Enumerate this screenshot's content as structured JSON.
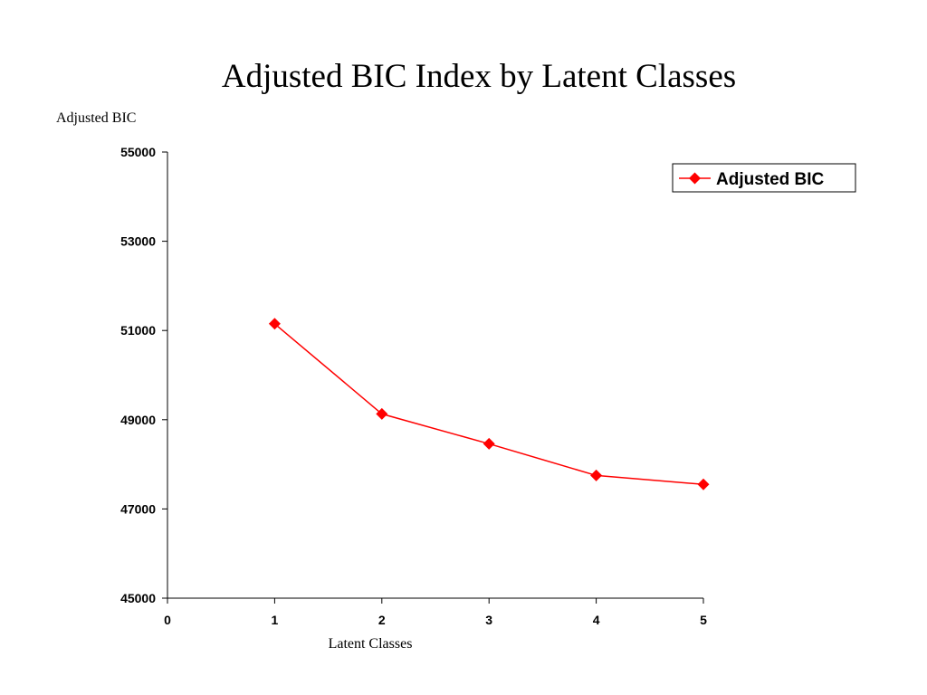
{
  "chart_data": {
    "type": "line",
    "title": "Adjusted BIC Index by Latent Classes",
    "xlabel": "Latent Classes",
    "ylabel": "Adjusted BIC",
    "xlim": [
      0,
      5
    ],
    "ylim": [
      45000,
      55000
    ],
    "xticks": [
      "0",
      "1",
      "2",
      "3",
      "4",
      "5"
    ],
    "yticks": [
      "45000",
      "47000",
      "49000",
      "51000",
      "53000",
      "55000"
    ],
    "grid": false,
    "legend_position": "top-right",
    "series": [
      {
        "name": "Adjusted BIC",
        "color": "#ff0000",
        "marker": "diamond",
        "x": [
          1,
          2,
          3,
          4,
          5
        ],
        "y": [
          51150,
          49130,
          48460,
          47750,
          47550
        ]
      }
    ]
  }
}
